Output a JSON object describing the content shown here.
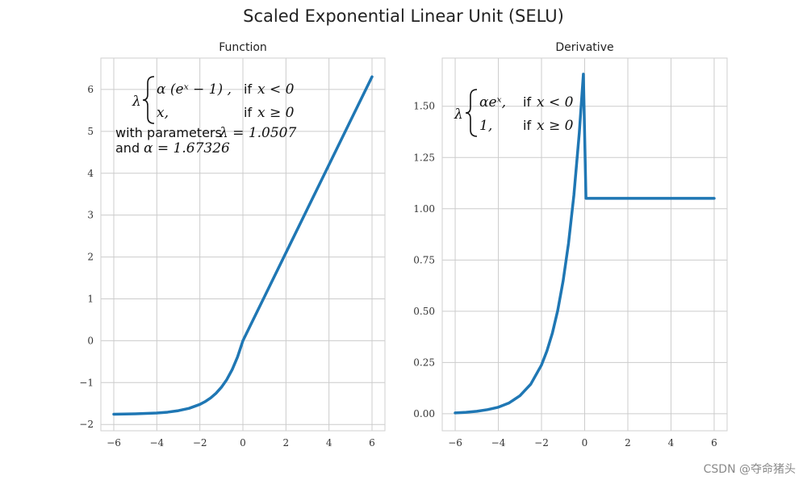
{
  "figure": {
    "title": "Scaled Exponential Linear Unit (SELU)",
    "watermark": "CSDN @夺命猪头"
  },
  "colors": {
    "line": "#1f77b4",
    "grid": "#cccccc",
    "frame": "#cfcfcf",
    "text": "#222222"
  },
  "chart_data": [
    {
      "type": "line",
      "title": "Function",
      "xlabel": "",
      "ylabel": "",
      "xlim": [
        -6.6,
        6.6
      ],
      "ylim": [
        -2.15,
        6.75
      ],
      "xticks": [
        -6,
        -4,
        -2,
        0,
        2,
        4,
        6
      ],
      "xtick_labels": [
        "−6",
        "−4",
        "−2",
        "0",
        "2",
        "4",
        "6"
      ],
      "yticks": [
        -2,
        -1,
        0,
        1,
        2,
        3,
        4,
        5,
        6
      ],
      "ytick_labels": [
        "−2",
        "−1",
        "0",
        "1",
        "2",
        "3",
        "4",
        "5",
        "6"
      ],
      "grid": true,
      "series": [
        {
          "x": [
            -6,
            -5.5,
            -5,
            -4.5,
            -4,
            -3.5,
            -3,
            -2.5,
            -2,
            -1.75,
            -1.5,
            -1.25,
            -1,
            -0.75,
            -0.5,
            -0.25,
            0,
            1,
            2,
            3,
            4,
            5,
            6
          ],
          "y": [
            -1.754,
            -1.751,
            -1.746,
            -1.737,
            -1.726,
            -1.706,
            -1.67,
            -1.614,
            -1.52,
            -1.452,
            -1.366,
            -1.255,
            -1.111,
            -0.928,
            -0.691,
            -0.388,
            0.0,
            1.051,
            2.101,
            3.152,
            4.203,
            5.254,
            6.304
          ]
        }
      ],
      "annotation": {
        "lambda": "λ",
        "case1_expr": "α (eˣ − 1) ,",
        "case1_cond_word": "if",
        "case1_cond_math": "x < 0",
        "case2_expr": "x,",
        "case2_cond_word": "if",
        "case2_cond_math": "x ≥ 0",
        "param_line1_text": "with parameters",
        "param_line1_math": "λ = 1.0507",
        "param_line2_text": "and",
        "param_line2_math": "α = 1.67326"
      }
    },
    {
      "type": "line",
      "title": "Derivative",
      "xlabel": "",
      "ylabel": "",
      "xlim": [
        -6.6,
        6.6
      ],
      "ylim": [
        -0.083,
        1.735
      ],
      "xticks": [
        -6,
        -4,
        -2,
        0,
        2,
        4,
        6
      ],
      "xtick_labels": [
        "−6",
        "−4",
        "−2",
        "0",
        "2",
        "4",
        "6"
      ],
      "yticks": [
        0,
        0.25,
        0.5,
        0.75,
        1.0,
        1.25,
        1.5
      ],
      "ytick_labels": [
        "0.00",
        "0.25",
        "0.50",
        "0.75",
        "1.00",
        "1.25",
        "1.50"
      ],
      "grid": true,
      "series": [
        {
          "x": [
            -6,
            -5.5,
            -5,
            -4.5,
            -4,
            -3.5,
            -3,
            -2.5,
            -2,
            -1.75,
            -1.5,
            -1.25,
            -1,
            -0.75,
            -0.5,
            -0.25,
            -0.06,
            0.06,
            1,
            2,
            3,
            4,
            5,
            6
          ],
          "y": [
            0.004,
            0.007,
            0.012,
            0.02,
            0.032,
            0.053,
            0.088,
            0.144,
            0.238,
            0.306,
            0.392,
            0.503,
            0.647,
            0.83,
            1.066,
            1.369,
            1.657,
            1.051,
            1.051,
            1.051,
            1.051,
            1.051,
            1.051,
            1.051
          ]
        }
      ],
      "annotation": {
        "lambda": "λ",
        "case1_expr": "αeˣ,",
        "case1_cond_word": "if",
        "case1_cond_math": "x < 0",
        "case2_expr": "1,",
        "case2_cond_word": "if",
        "case2_cond_math": "x ≥ 0"
      }
    }
  ]
}
